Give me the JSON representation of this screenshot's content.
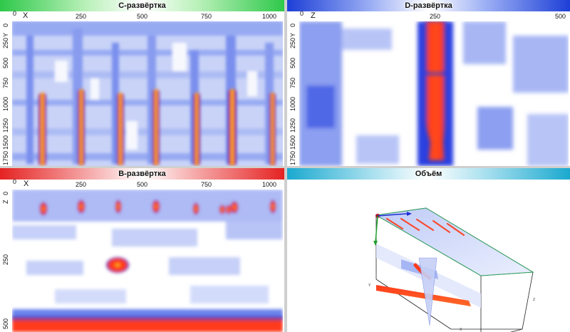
{
  "panels": {
    "c_scan": {
      "title": "C-развёртка",
      "h_axis_letter": "X",
      "v_axis_letter": "Y",
      "h_ticks": [
        "0",
        "250",
        "500",
        "750",
        "1000"
      ],
      "v_ticks": [
        "0",
        "250",
        "500",
        "750",
        "1000",
        "1250",
        "1500",
        "1750"
      ]
    },
    "d_scan": {
      "title": "D-развёртка",
      "h_axis_letter": "Z",
      "v_axis_letter": "Y",
      "h_ticks": [
        "0",
        "250",
        "500"
      ],
      "v_ticks": [
        "0",
        "250",
        "500",
        "750",
        "1000",
        "1250",
        "1500",
        "1750"
      ]
    },
    "b_scan": {
      "title": "B-развёртка",
      "h_axis_letter": "X",
      "v_axis_letter": "Z",
      "h_ticks": [
        "0",
        "250",
        "500",
        "750",
        "1000"
      ],
      "v_ticks": [
        "0",
        "250",
        "500"
      ]
    },
    "volume": {
      "title": "Объём",
      "axis_y": "Y",
      "axis_x": "X",
      "axis_z": "Z"
    }
  },
  "colors": {
    "c_bar": "#2ec84a",
    "d_bar": "#1d3fd6",
    "b_bar": "#e52222",
    "v_bar": "#1aa9cf",
    "signal_low": "#ffffff",
    "signal_mid": "#2b3fe0",
    "signal_high": "#ff3b1a",
    "signal_peak": "#f5e21a"
  }
}
